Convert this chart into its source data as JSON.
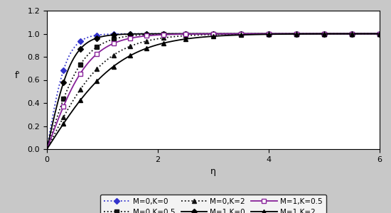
{
  "title": "",
  "xlabel": "η",
  "ylabel": "f'",
  "xlim": [
    0,
    6
  ],
  "ylim": [
    0,
    1.2
  ],
  "xticks": [
    0,
    2,
    4,
    6
  ],
  "yticks": [
    0,
    0.2,
    0.4,
    0.6,
    0.8,
    1.0,
    1.2
  ],
  "background_color": "#c8c8c8",
  "plot_bg_color": "#ffffff",
  "curves": [
    {
      "label": "M=0,K=0",
      "M": 0,
      "K": 0,
      "c": 2.8,
      "linestyle": "dotted",
      "color": "#3333cc",
      "marker": "D",
      "markersize": 4,
      "mfc": "#3333cc"
    },
    {
      "label": "M=0,K=0.5",
      "M": 0,
      "K": 0.5,
      "c": 1.55,
      "linestyle": "dotted",
      "color": "#111111",
      "marker": "s",
      "markersize": 4,
      "mfc": "#111111"
    },
    {
      "label": "M=0,K=2",
      "M": 0,
      "K": 2,
      "c": 0.95,
      "linestyle": "dotted",
      "color": "#111111",
      "marker": "^",
      "markersize": 4,
      "mfc": "#111111"
    },
    {
      "label": "M=1,K=0",
      "M": 1,
      "K": 0,
      "c": 2.2,
      "linestyle": "solid",
      "color": "#000000",
      "marker": "D",
      "markersize": 4,
      "mfc": "#000000"
    },
    {
      "label": "M=1,K=0.5",
      "M": 1,
      "K": 0.5,
      "c": 1.3,
      "linestyle": "solid",
      "color": "#882299",
      "marker": "s",
      "markersize": 5,
      "mfc": "#ffffff"
    },
    {
      "label": "M=1,K=2",
      "M": 1,
      "K": 2,
      "c": 0.75,
      "linestyle": "solid",
      "color": "#000000",
      "marker": "^",
      "markersize": 4,
      "mfc": "#000000"
    }
  ],
  "legend_cols": 3,
  "figsize": [
    5.5,
    3.0
  ],
  "dpi": 100,
  "marker_eta": [
    0.3,
    0.6,
    0.9,
    1.2,
    1.5,
    1.8,
    2.1,
    2.5,
    3.0,
    3.5,
    4.0,
    4.5,
    5.0,
    5.5,
    6.0
  ]
}
